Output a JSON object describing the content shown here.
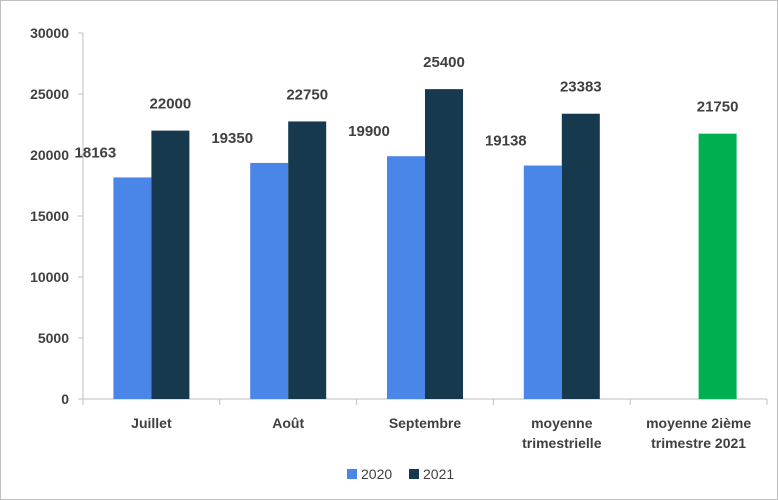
{
  "chart_data": {
    "type": "bar",
    "title": "",
    "xlabel": "",
    "ylabel": "",
    "ylim": [
      0,
      30000
    ],
    "yticks": [
      0,
      5000,
      10000,
      15000,
      20000,
      25000,
      30000
    ],
    "grid": false,
    "legend_position": "bottom",
    "categories": [
      [
        "Juillet"
      ],
      [
        "Août"
      ],
      [
        "Septembre"
      ],
      [
        "moyenne",
        "trimestrielle"
      ],
      [
        "moyenne 2ième",
        "trimestre 2021"
      ]
    ],
    "series": [
      {
        "name": "2020",
        "color": "#4a86e8",
        "values": [
          18163,
          19350,
          19900,
          19138,
          null
        ],
        "labels": [
          "18163",
          "19350",
          "19900",
          "19138",
          null
        ]
      },
      {
        "name": "2021",
        "color": "#17394d",
        "values": [
          22000,
          22750,
          25400,
          23383,
          null
        ],
        "labels": [
          "22000",
          "22750",
          "25400",
          "23383",
          null
        ]
      }
    ],
    "extra_bar": {
      "category_index": 4,
      "value": 21750,
      "label": "21750",
      "color": "#00b050"
    },
    "colors": {
      "axis": "#bfbfbf",
      "text": "#404040"
    }
  }
}
